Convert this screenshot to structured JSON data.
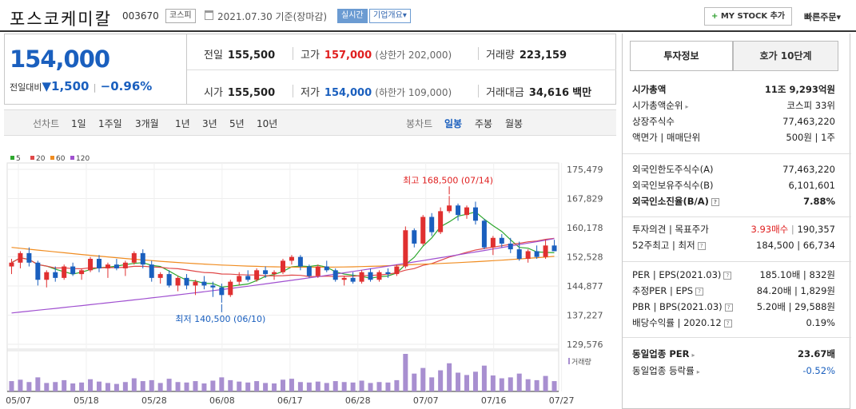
{
  "header": {
    "name": "포스코케미칼",
    "code": "003670",
    "market": "코스피",
    "date": "2021.07.30 기준(장마감)",
    "live": "실시간",
    "corp": "기업개요",
    "corp_arrow": "▾",
    "mystock_plus": "+",
    "mystock": "MY STOCK 추가",
    "quick": "빠른주문",
    "quick_arrow": "▾"
  },
  "price": {
    "current": "154,000",
    "change_label": "전일대비",
    "change_arrow": "▼",
    "change": "1,500",
    "sep": "|",
    "rate": "−0.96%"
  },
  "quote": {
    "prev_label": "전일",
    "prev": "155,500",
    "high_label": "고가",
    "high": "157,000",
    "upper": "(상한가 202,000)",
    "volume_label": "거래량",
    "volume": "223,159",
    "open_label": "시가",
    "open": "155,500",
    "low_label": "저가",
    "low": "154,000",
    "lower": "(하한가 109,000)",
    "amount_label": "거래대금",
    "amount": "34,616",
    "amount_unit": "백만"
  },
  "periods": {
    "line_label": "선차트",
    "line": [
      "1일",
      "1주일",
      "3개월",
      "1년",
      "3년",
      "5년",
      "10년"
    ],
    "candle_label": "봉차트",
    "candle": [
      "일봉",
      "주봉",
      "월봉"
    ],
    "selected": "일봉"
  },
  "chart_data": {
    "type": "candlestick",
    "legend": [
      "5",
      "20",
      "60",
      "120"
    ],
    "legend_colors": [
      "#2ea82e",
      "#e04848",
      "#f08c20",
      "#a050d0"
    ],
    "y_ticks": [
      "175,479",
      "167,829",
      "160,178",
      "152,528",
      "144,877",
      "137,227",
      "129,576"
    ],
    "ylim": [
      129576,
      175479
    ],
    "x_ticks": [
      "05/07",
      "05/18",
      "05/28",
      "06/08",
      "06/17",
      "06/28",
      "07/07",
      "07/16",
      "07/27"
    ],
    "max_annotation": "최고 168,500 (07/14)",
    "min_annotation": "최저 140,500 (06/10)",
    "volume_label": "거래량",
    "candles": [
      [
        150000,
        152000,
        148000,
        151000
      ],
      [
        151000,
        154000,
        149500,
        153500
      ],
      [
        153500,
        155000,
        150000,
        151000
      ],
      [
        151000,
        151500,
        145000,
        146500
      ],
      [
        146500,
        149000,
        144500,
        148500
      ],
      [
        148500,
        150000,
        146000,
        147000
      ],
      [
        147000,
        150500,
        146500,
        150000
      ],
      [
        150000,
        151000,
        147500,
        148000
      ],
      [
        148000,
        149500,
        146500,
        149000
      ],
      [
        149000,
        152500,
        148500,
        152000
      ],
      [
        152000,
        153000,
        148500,
        149500
      ],
      [
        149500,
        151000,
        147000,
        150500
      ],
      [
        150500,
        152000,
        149000,
        149500
      ],
      [
        149500,
        151500,
        147500,
        151000
      ],
      [
        151000,
        154000,
        150500,
        153500
      ],
      [
        153500,
        154500,
        149500,
        150500
      ],
      [
        150500,
        151500,
        146000,
        147000
      ],
      [
        147000,
        148500,
        145500,
        148000
      ],
      [
        148000,
        149000,
        144500,
        145000
      ],
      [
        145000,
        147500,
        143500,
        147000
      ],
      [
        147000,
        148000,
        144000,
        145000
      ],
      [
        145000,
        146500,
        142500,
        146000
      ],
      [
        146000,
        147500,
        144000,
        145000
      ],
      [
        145000,
        146000,
        142000,
        144500
      ],
      [
        144500,
        145500,
        140500,
        142500
      ],
      [
        142500,
        146500,
        142000,
        146000
      ],
      [
        146000,
        148500,
        145000,
        147500
      ],
      [
        147500,
        149000,
        146000,
        146500
      ],
      [
        146500,
        149500,
        146000,
        149000
      ],
      [
        149000,
        150000,
        147000,
        148000
      ],
      [
        148000,
        149000,
        146500,
        148500
      ],
      [
        148500,
        152000,
        148000,
        151500
      ],
      [
        151500,
        153000,
        150500,
        152500
      ],
      [
        152500,
        153000,
        149000,
        150000
      ],
      [
        150000,
        150500,
        147000,
        147500
      ],
      [
        147500,
        150500,
        147000,
        150000
      ],
      [
        150000,
        151500,
        148500,
        149000
      ],
      [
        149000,
        149500,
        146000,
        146500
      ],
      [
        146500,
        147500,
        145000,
        147000
      ],
      [
        147000,
        148500,
        145500,
        146000
      ],
      [
        146000,
        149000,
        145500,
        148500
      ],
      [
        148500,
        149500,
        146000,
        146500
      ],
      [
        146500,
        149000,
        146000,
        148500
      ],
      [
        148500,
        149500,
        147000,
        148000
      ],
      [
        148000,
        150500,
        147500,
        150000
      ],
      [
        150000,
        160500,
        149500,
        159500
      ],
      [
        159500,
        160000,
        155000,
        156000
      ],
      [
        156000,
        163500,
        155500,
        163000
      ],
      [
        163000,
        164000,
        158000,
        159000
      ],
      [
        159000,
        165500,
        158500,
        164500
      ],
      [
        164500,
        168500,
        164000,
        166000
      ],
      [
        166000,
        166500,
        162000,
        163500
      ],
      [
        163500,
        166000,
        162500,
        165500
      ],
      [
        165500,
        167000,
        161000,
        162000
      ],
      [
        162000,
        162500,
        154500,
        155000
      ],
      [
        155000,
        158000,
        153000,
        157500
      ],
      [
        157500,
        158500,
        155000,
        156000
      ],
      [
        156000,
        157500,
        153500,
        154500
      ],
      [
        154500,
        156500,
        151500,
        152000
      ],
      [
        152000,
        154500,
        151000,
        154000
      ],
      [
        154000,
        155500,
        152000,
        152500
      ],
      [
        152500,
        157000,
        152000,
        155500
      ],
      [
        155500,
        157000,
        154000,
        154000
      ]
    ],
    "volumes": [
      22,
      25,
      20,
      30,
      18,
      20,
      24,
      17,
      19,
      26,
      21,
      18,
      16,
      20,
      28,
      22,
      24,
      18,
      27,
      20,
      19,
      22,
      17,
      23,
      30,
      24,
      21,
      19,
      22,
      18,
      17,
      25,
      27,
      20,
      19,
      21,
      18,
      22,
      20,
      19,
      23,
      18,
      20,
      19,
      24,
      80,
      38,
      50,
      30,
      45,
      60,
      40,
      35,
      42,
      55,
      34,
      28,
      30,
      38,
      26,
      24,
      33,
      22
    ]
  },
  "side": {
    "tabs": [
      "투자정보",
      "호가 10단계"
    ],
    "rows1": [
      {
        "k": "시가총액",
        "v": "11조 9,293억원",
        "bold": true
      },
      {
        "k": "시가총액순위",
        "v": "코스피 33위",
        "arrow": true
      },
      {
        "k": "상장주식수",
        "v": "77,463,220"
      },
      {
        "k": "액면가 | 매매단위",
        "v": "500원 | 1주"
      }
    ],
    "rows2": [
      {
        "k": "외국인한도주식수(A)",
        "v": "77,463,220"
      },
      {
        "k": "외국인보유주식수(B)",
        "v": "6,101,601"
      },
      {
        "k": "외국인소진율(B/A)",
        "v": "7.88%",
        "bold": true,
        "q": true
      }
    ],
    "opinion_label": "투자의견 | 목표주가",
    "opinion": "3.93매수",
    "target": "190,357",
    "high52_label": "52주최고 | 최저",
    "high52": "184,500 | 66,734",
    "rows4": [
      {
        "k": "PER | EPS(2021.03)",
        "v": "185.10배 | 832원",
        "q": true
      },
      {
        "k": "추정PER | EPS",
        "v": "84.20배 | 1,829원",
        "q": true
      },
      {
        "k": "PBR | BPS(2021.03)",
        "v": "5.20배 | 29,588원",
        "q": true
      },
      {
        "k": "배당수익률 | 2020.12",
        "v": "0.19%",
        "q": true
      }
    ],
    "same_per_label": "동일업종 PER",
    "same_per": "23.67배",
    "same_rate_label": "동일업종 등락률",
    "same_rate": "-0.52%",
    "q_glyph": "?",
    "arrow_glyph": "▸"
  }
}
